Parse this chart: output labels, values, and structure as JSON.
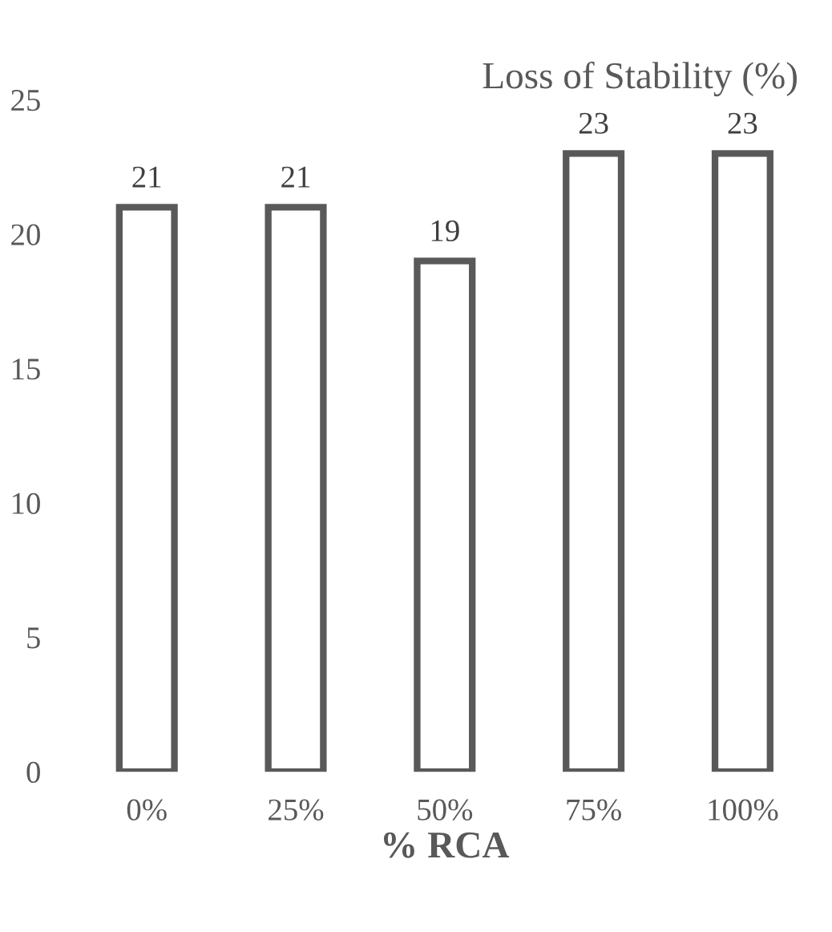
{
  "chart_data": {
    "type": "bar",
    "title": "Loss of Stability (%)",
    "xlabel": "% RCA",
    "categories": [
      "0%",
      "25%",
      "50%",
      "75%",
      "100%"
    ],
    "values": [
      21,
      21,
      19,
      23,
      23
    ],
    "color": "#595959",
    "ylim": [
      0,
      25
    ],
    "yticks": [
      0,
      5,
      10,
      15,
      20,
      25
    ],
    "data_labels": true,
    "grid": false,
    "legend": false
  }
}
